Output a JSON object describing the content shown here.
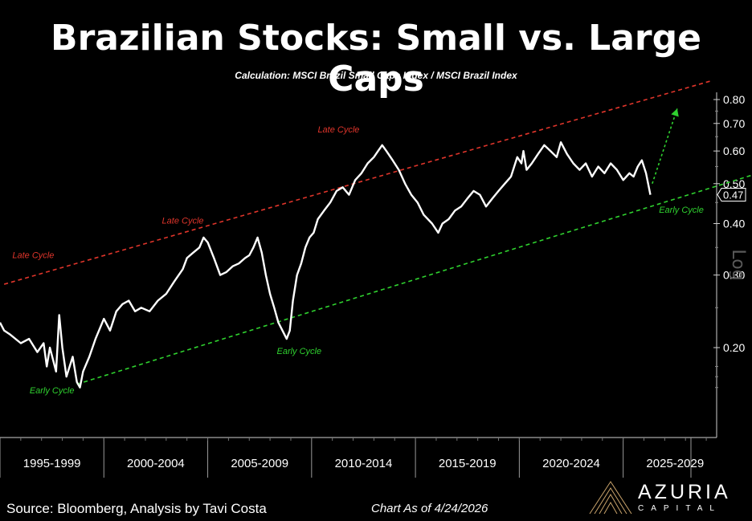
{
  "header": {
    "title": "Brazilian Stocks: Small vs. Large Caps",
    "subtitle": "Calculation: MSCI Brazil Small Caps Index / MSCI Brazil Index"
  },
  "footer": {
    "source": "Source: Bloomberg, Analysis by Tavi Costa",
    "as_of": "Chart As of 4/24/2026"
  },
  "logo": {
    "name": "AZURIA",
    "sub": "CAPITAL",
    "icon": "mountain-peaks-icon"
  },
  "colors": {
    "background": "#000000",
    "line": "#ffffff",
    "upper_channel": "#e0352b",
    "lower_channel": "#2fd12f",
    "arrow": "#2fd12f"
  },
  "chart_data": {
    "type": "line",
    "y_scale": "log",
    "y_scale_label": "Log",
    "ylim": [
      0.15,
      0.85
    ],
    "xlim": [
      1995.0,
      2029.5
    ],
    "y_ticks": [
      0.8,
      0.7,
      0.6,
      0.5,
      0.4,
      0.3,
      0.2
    ],
    "y_tick_labels": [
      "0.80",
      "0.70",
      "0.60",
      "0.50",
      "0.40",
      "0.30",
      "0.20"
    ],
    "last_value": 0.47,
    "last_value_label": "0.47",
    "x_categories": [
      "1995-1999",
      "2000-2004",
      "2005-2009",
      "2010-2014",
      "2015-2019",
      "2020-2024",
      "2025-2029"
    ],
    "x_category_bounds": [
      1995,
      2000,
      2005,
      2010,
      2015,
      2020,
      2025,
      2030
    ],
    "grid": false,
    "series": [
      {
        "x": [
          1995.0,
          1995.2,
          1995.5,
          1996.0,
          1996.4,
          1996.8,
          1997.1,
          1997.25,
          1997.4,
          1997.7,
          1997.85,
          1998.0,
          1998.2,
          1998.5,
          1998.7,
          1998.85,
          1999.0,
          1999.3,
          1999.6,
          2000.0,
          2000.3,
          2000.6,
          2000.9,
          2001.2,
          2001.5,
          2001.8,
          2002.2,
          2002.6,
          2003.0,
          2003.4,
          2003.8,
          2004.0,
          2004.3,
          2004.6,
          2004.8,
          2005.0,
          2005.3,
          2005.6,
          2005.9,
          2006.2,
          2006.5,
          2006.8,
          2007.0,
          2007.2,
          2007.4,
          2007.6,
          2007.8,
          2008.0,
          2008.2,
          2008.4,
          2008.6,
          2008.8,
          2008.95,
          2009.1,
          2009.3,
          2009.5,
          2009.7,
          2009.9,
          2010.1,
          2010.3,
          2010.6,
          2010.9,
          2011.2,
          2011.5,
          2011.8,
          2012.1,
          2012.4,
          2012.7,
          2013.0,
          2013.2,
          2013.4,
          2013.6,
          2013.9,
          2014.2,
          2014.5,
          2014.8,
          2015.1,
          2015.4,
          2015.8,
          2016.1,
          2016.3,
          2016.6,
          2016.9,
          2017.2,
          2017.5,
          2017.8,
          2018.1,
          2018.4,
          2018.7,
          2019.0,
          2019.3,
          2019.6,
          2019.9,
          2020.1,
          2020.2,
          2020.35,
          2020.6,
          2020.9,
          2021.2,
          2021.5,
          2021.8,
          2022.0,
          2022.3,
          2022.6,
          2022.9,
          2023.2,
          2023.5,
          2023.8,
          2024.1,
          2024.4,
          2024.7,
          2025.0,
          2025.3,
          2025.5,
          2025.7,
          2025.9,
          2026.1,
          2026.31
        ],
        "y": [
          0.23,
          0.22,
          0.215,
          0.205,
          0.21,
          0.195,
          0.205,
          0.18,
          0.2,
          0.175,
          0.24,
          0.2,
          0.17,
          0.19,
          0.165,
          0.16,
          0.175,
          0.19,
          0.21,
          0.235,
          0.22,
          0.245,
          0.255,
          0.26,
          0.245,
          0.25,
          0.245,
          0.26,
          0.27,
          0.29,
          0.31,
          0.33,
          0.34,
          0.35,
          0.37,
          0.36,
          0.33,
          0.3,
          0.305,
          0.315,
          0.32,
          0.33,
          0.335,
          0.35,
          0.37,
          0.34,
          0.3,
          0.27,
          0.25,
          0.23,
          0.22,
          0.21,
          0.22,
          0.26,
          0.3,
          0.32,
          0.35,
          0.37,
          0.38,
          0.41,
          0.43,
          0.45,
          0.48,
          0.49,
          0.47,
          0.51,
          0.53,
          0.56,
          0.58,
          0.6,
          0.62,
          0.6,
          0.57,
          0.54,
          0.5,
          0.47,
          0.45,
          0.42,
          0.4,
          0.38,
          0.4,
          0.41,
          0.43,
          0.44,
          0.46,
          0.48,
          0.47,
          0.44,
          0.46,
          0.48,
          0.5,
          0.52,
          0.58,
          0.56,
          0.6,
          0.54,
          0.56,
          0.59,
          0.62,
          0.6,
          0.58,
          0.63,
          0.59,
          0.56,
          0.54,
          0.56,
          0.52,
          0.55,
          0.53,
          0.56,
          0.54,
          0.51,
          0.53,
          0.52,
          0.55,
          0.57,
          0.53,
          0.47
        ]
      }
    ],
    "channels": [
      {
        "name": "upper",
        "x": [
          1995.2,
          2029.3
        ],
        "y": [
          0.285,
          0.89
        ]
      },
      {
        "name": "lower",
        "x": [
          1998.7,
          2031.5
        ],
        "y": [
          0.163,
          0.53
        ]
      }
    ],
    "arrow": {
      "x": [
        2026.4,
        2027.6
      ],
      "y": [
        0.5,
        0.76
      ]
    },
    "annotations": [
      {
        "text": "Late Cycle",
        "x": 1996.6,
        "y": 0.33,
        "color": "#e0352b"
      },
      {
        "text": "Late Cycle",
        "x": 2003.8,
        "y": 0.4,
        "color": "#e0352b"
      },
      {
        "text": "Late Cycle",
        "x": 2011.3,
        "y": 0.665,
        "color": "#e0352b"
      },
      {
        "text": "Early Cycle",
        "x": 1997.5,
        "y": 0.155,
        "color": "#2fd12f"
      },
      {
        "text": "Early Cycle",
        "x": 2009.4,
        "y": 0.193,
        "color": "#2fd12f"
      },
      {
        "text": "Early Cycle",
        "x": 2027.8,
        "y": 0.425,
        "color": "#2fd12f"
      }
    ]
  }
}
